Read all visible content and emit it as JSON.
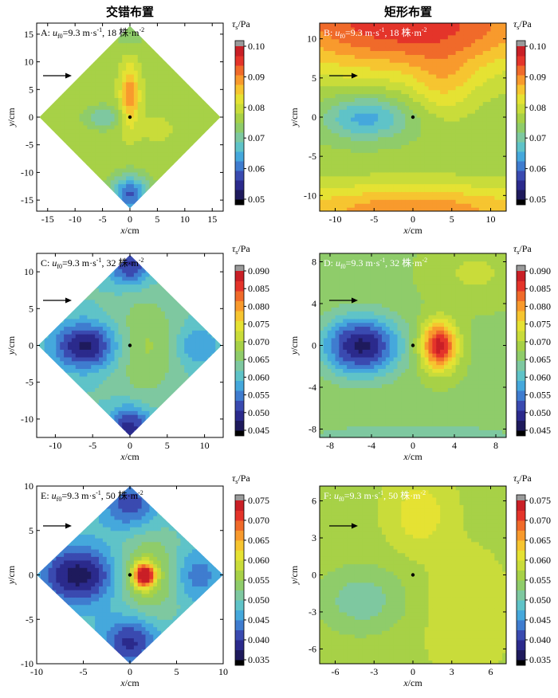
{
  "column_titles": [
    "交错布置",
    "矩形布置"
  ],
  "colorbar_title": "τ",
  "colorbar_title_sub": "s",
  "colorbar_title_unit": "/Pa",
  "colormap": [
    "#1e1a5c",
    "#2b2a8c",
    "#3a4ab0",
    "#3f7ccf",
    "#45a8dc",
    "#5fc3c8",
    "#7ec8a0",
    "#8fcc6a",
    "#a7d147",
    "#c9dc3a",
    "#e5e233",
    "#f6c530",
    "#f89a2d",
    "#f06a2a",
    "#e4342a",
    "#c91f26"
  ],
  "cap_low_color": "#000000",
  "cap_high_color": "#9a9a9a",
  "chart_data": [
    {
      "id": "A",
      "type": "contour",
      "layout": "staggered",
      "label_prefix": "A: ",
      "u_sym": "u",
      "u_sub": "f0",
      "label_value": "=9.3 m·s",
      "label_exp1": "-1",
      "label_density": ", 18 株·m",
      "label_exp2": "-2",
      "xlabel": "x/cm",
      "ylabel": "y/cm",
      "xlim": [
        -17,
        17
      ],
      "ylim": [
        -17,
        17
      ],
      "xticks": [
        -15,
        -10,
        -5,
        0,
        5,
        10,
        15
      ],
      "yticks": [
        -15,
        -10,
        -5,
        0,
        5,
        10,
        15
      ],
      "domain_shape": "diamond",
      "half_diagonal": 16.5,
      "clim": [
        0.05,
        0.1
      ],
      "colorbar_ticks": [
        "0.05",
        "0.06",
        "0.07",
        "0.08",
        "0.09",
        "0.10"
      ],
      "base_value": 0.077,
      "features": [
        {
          "x": 0,
          "y": 4,
          "sx": 1.2,
          "sy": 4,
          "amp": 0.013
        },
        {
          "x": -5,
          "y": 0,
          "sx": 2.5,
          "sy": 1.5,
          "amp": -0.008
        },
        {
          "x": 0,
          "y": -14,
          "sx": 2.5,
          "sy": 2.5,
          "amp": -0.018
        },
        {
          "x": 0,
          "y": 15,
          "sx": 2,
          "sy": 2,
          "amp": -0.004
        },
        {
          "x": 5,
          "y": -2,
          "sx": 2.5,
          "sy": 2,
          "amp": 0.002
        }
      ]
    },
    {
      "id": "B",
      "type": "contour",
      "layout": "rectangular",
      "label_prefix": "B: ",
      "u_sym": "u",
      "u_sub": "f0",
      "label_value": "=9.3 m·s",
      "label_exp1": "-1",
      "label_density": ", 18 株·m",
      "label_exp2": "-2",
      "xlabel": "x/cm",
      "ylabel": "y/cm",
      "xlim": [
        -12,
        12
      ],
      "ylim": [
        -12,
        12
      ],
      "xticks": [
        -10,
        -5,
        0,
        5,
        10
      ],
      "yticks": [
        -10,
        -5,
        0,
        5,
        10
      ],
      "domain_shape": "rect",
      "clim": [
        0.05,
        0.1
      ],
      "colorbar_ticks": [
        "0.05",
        "0.06",
        "0.07",
        "0.08",
        "0.09",
        "0.10"
      ],
      "base_value": 0.076,
      "features": [
        {
          "x": -1,
          "y": 12,
          "sx": 14,
          "sy": 4.5,
          "amp": 0.02
        },
        {
          "x": 0,
          "y": -12,
          "sx": 14,
          "sy": 2.5,
          "amp": 0.014
        },
        {
          "x": -6,
          "y": 0,
          "sx": 4,
          "sy": 2,
          "amp": -0.012
        },
        {
          "x": 4,
          "y": 4,
          "sx": 3,
          "sy": 3,
          "amp": 0.006
        }
      ]
    },
    {
      "id": "C",
      "type": "contour",
      "layout": "staggered",
      "label_prefix": "C: ",
      "u_sym": "u",
      "u_sub": "f0",
      "label_value": "=9.3 m·s",
      "label_exp1": "-1",
      "label_density": ", 32 株·m",
      "label_exp2": "-2",
      "xlabel": "x/cm",
      "ylabel": "y/cm",
      "xlim": [
        -12.5,
        12.5
      ],
      "ylim": [
        -12.5,
        12.5
      ],
      "xticks": [
        -10,
        -5,
        0,
        5,
        10
      ],
      "yticks": [
        -10,
        -5,
        0,
        5,
        10
      ],
      "domain_shape": "diamond",
      "half_diagonal": 12.3,
      "clim": [
        0.045,
        0.09
      ],
      "colorbar_ticks": [
        "0.045",
        "0.050",
        "0.055",
        "0.060",
        "0.065",
        "0.070",
        "0.075",
        "0.080",
        "0.085",
        "0.090"
      ],
      "base_value": 0.062,
      "features": [
        {
          "x": -6,
          "y": 0,
          "sx": 3,
          "sy": 2.2,
          "amp": -0.015
        },
        {
          "x": 2,
          "y": 0,
          "sx": 3,
          "sy": 5,
          "amp": 0.006
        },
        {
          "x": 0,
          "y": -11,
          "sx": 2,
          "sy": 2,
          "amp": -0.013
        },
        {
          "x": 0,
          "y": 11,
          "sx": 2,
          "sy": 2,
          "amp": -0.012
        },
        {
          "x": 9,
          "y": 0,
          "sx": 2,
          "sy": 2,
          "amp": -0.006
        }
      ]
    },
    {
      "id": "D",
      "type": "contour",
      "layout": "rectangular",
      "label_prefix": "D: ",
      "u_sym": "u",
      "u_sub": "f0",
      "label_value": "=9.3 m·s",
      "label_exp1": "-1",
      "label_density": ", 32 株·m",
      "label_exp2": "-2",
      "xlabel": "x/cm",
      "ylabel": "y/cm",
      "xlim": [
        -9,
        9
      ],
      "ylim": [
        -8.8,
        8.8
      ],
      "xticks": [
        -8,
        -4,
        0,
        4,
        8
      ],
      "yticks": [
        -8,
        -4,
        0,
        4,
        8
      ],
      "domain_shape": "rect",
      "clim": [
        0.045,
        0.09
      ],
      "colorbar_ticks": [
        "0.045",
        "0.050",
        "0.055",
        "0.060",
        "0.065",
        "0.070",
        "0.075",
        "0.080",
        "0.085",
        "0.090"
      ],
      "base_value": 0.067,
      "features": [
        {
          "x": -5,
          "y": 0,
          "sx": 2.6,
          "sy": 2,
          "amp": -0.02
        },
        {
          "x": 2.5,
          "y": 0,
          "sx": 1.2,
          "sy": 1.6,
          "amp": 0.022
        },
        {
          "x": 0,
          "y": -8.8,
          "sx": 9,
          "sy": 1.2,
          "amp": -0.004
        },
        {
          "x": 6,
          "y": 7,
          "sx": 3,
          "sy": 2,
          "amp": 0.004
        }
      ]
    },
    {
      "id": "E",
      "type": "contour",
      "layout": "staggered",
      "label_prefix": "E: ",
      "u_sym": "u",
      "u_sub": "f0",
      "label_value": "=9.3 m·s",
      "label_exp1": "-1",
      "label_density": ", 50 株·m",
      "label_exp2": "-2",
      "xlabel": "x/cm",
      "ylabel": "y/cm",
      "xlim": [
        -10,
        10
      ],
      "ylim": [
        -10,
        10
      ],
      "xticks": [
        -10,
        -5,
        0,
        5,
        10
      ],
      "yticks": [
        -10,
        -5,
        0,
        5,
        10
      ],
      "domain_shape": "diamond",
      "half_diagonal": 10,
      "clim": [
        0.035,
        0.075
      ],
      "colorbar_ticks": [
        "0.035",
        "0.040",
        "0.045",
        "0.050",
        "0.055",
        "0.060",
        "0.065",
        "0.070",
        "0.075"
      ],
      "base_value": 0.049,
      "features": [
        {
          "x": -5.5,
          "y": 0,
          "sx": 2.8,
          "sy": 2.2,
          "amp": -0.013
        },
        {
          "x": 1.5,
          "y": 0,
          "sx": 0.8,
          "sy": 0.9,
          "amp": 0.024
        },
        {
          "x": 2,
          "y": 0,
          "sx": 2.5,
          "sy": 3.2,
          "amp": 0.008
        },
        {
          "x": 0,
          "y": -7.5,
          "sx": 2,
          "sy": 2,
          "amp": -0.01
        },
        {
          "x": 7,
          "y": 0,
          "sx": 2,
          "sy": 2,
          "amp": -0.006
        },
        {
          "x": 0,
          "y": 8,
          "sx": 2,
          "sy": 2,
          "amp": -0.008
        }
      ]
    },
    {
      "id": "F",
      "type": "contour",
      "layout": "rectangular",
      "label_prefix": "F: ",
      "u_sym": "u",
      "u_sub": "f0",
      "label_value": "=9.3 m·s",
      "label_exp1": "-1",
      "label_density": ", 50 株·m",
      "label_exp2": "-2",
      "xlabel": "x/cm",
      "ylabel": "y/cm",
      "xlim": [
        -7.2,
        7.2
      ],
      "ylim": [
        -7.2,
        7.2
      ],
      "xticks": [
        -6,
        -3,
        0,
        3,
        6
      ],
      "yticks": [
        -6,
        -3,
        0,
        3,
        6
      ],
      "domain_shape": "rect",
      "clim": [
        0.035,
        0.075
      ],
      "colorbar_ticks": [
        "0.035",
        "0.040",
        "0.045",
        "0.050",
        "0.055",
        "0.060",
        "0.065",
        "0.070",
        "0.075"
      ],
      "base_value": 0.057,
      "features": [
        {
          "x": -4,
          "y": -2,
          "sx": 2.5,
          "sy": 2,
          "amp": -0.006
        },
        {
          "x": 0.5,
          "y": 5,
          "sx": 1.5,
          "sy": 2,
          "amp": 0.005
        },
        {
          "x": 4,
          "y": -3,
          "sx": 2,
          "sy": 3,
          "amp": 0.003
        }
      ]
    }
  ]
}
